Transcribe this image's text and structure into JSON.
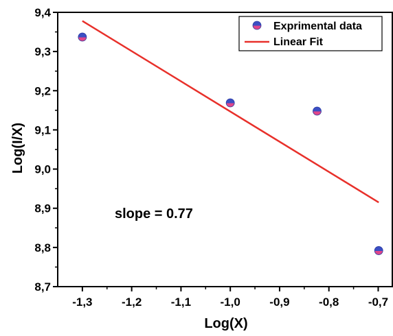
{
  "chart_data": {
    "type": "scatter",
    "xlabel": "Log(X)",
    "ylabel": "Log(I/X)",
    "xlim": [
      -1.35,
      -0.67
    ],
    "ylim": [
      8.7,
      9.4
    ],
    "xticks": [
      -1.3,
      -1.2,
      -1.1,
      -1.0,
      -0.9,
      -0.8,
      -0.7
    ],
    "xtick_labels": [
      "-1,3",
      "-1,2",
      "-1,1",
      "-1,0",
      "-0,9",
      "-0,8",
      "-0,7"
    ],
    "yticks": [
      8.7,
      8.8,
      8.9,
      9.0,
      9.1,
      9.2,
      9.3,
      9.4
    ],
    "ytick_labels": [
      "8,7",
      "8,8",
      "8,9",
      "9,0",
      "9,1",
      "9,2",
      "9,3",
      "9,4"
    ],
    "grid": false,
    "legend_position": "top-right",
    "series": [
      {
        "name": "Exprimental data",
        "kind": "points",
        "color_top": "#3b4fc4",
        "color_bottom": "#e0468a",
        "x": [
          -1.3,
          -1.0,
          -0.824,
          -0.699
        ],
        "y": [
          9.337,
          9.169,
          9.148,
          8.792
        ]
      },
      {
        "name": "Linear Fit",
        "kind": "line",
        "color": "#e8302a",
        "x": [
          -1.3,
          -0.699
        ],
        "y": [
          9.378,
          8.915
        ]
      }
    ],
    "annotations": [
      {
        "text": "slope = 0.77",
        "x": -1.155,
        "y": 8.875
      }
    ]
  }
}
